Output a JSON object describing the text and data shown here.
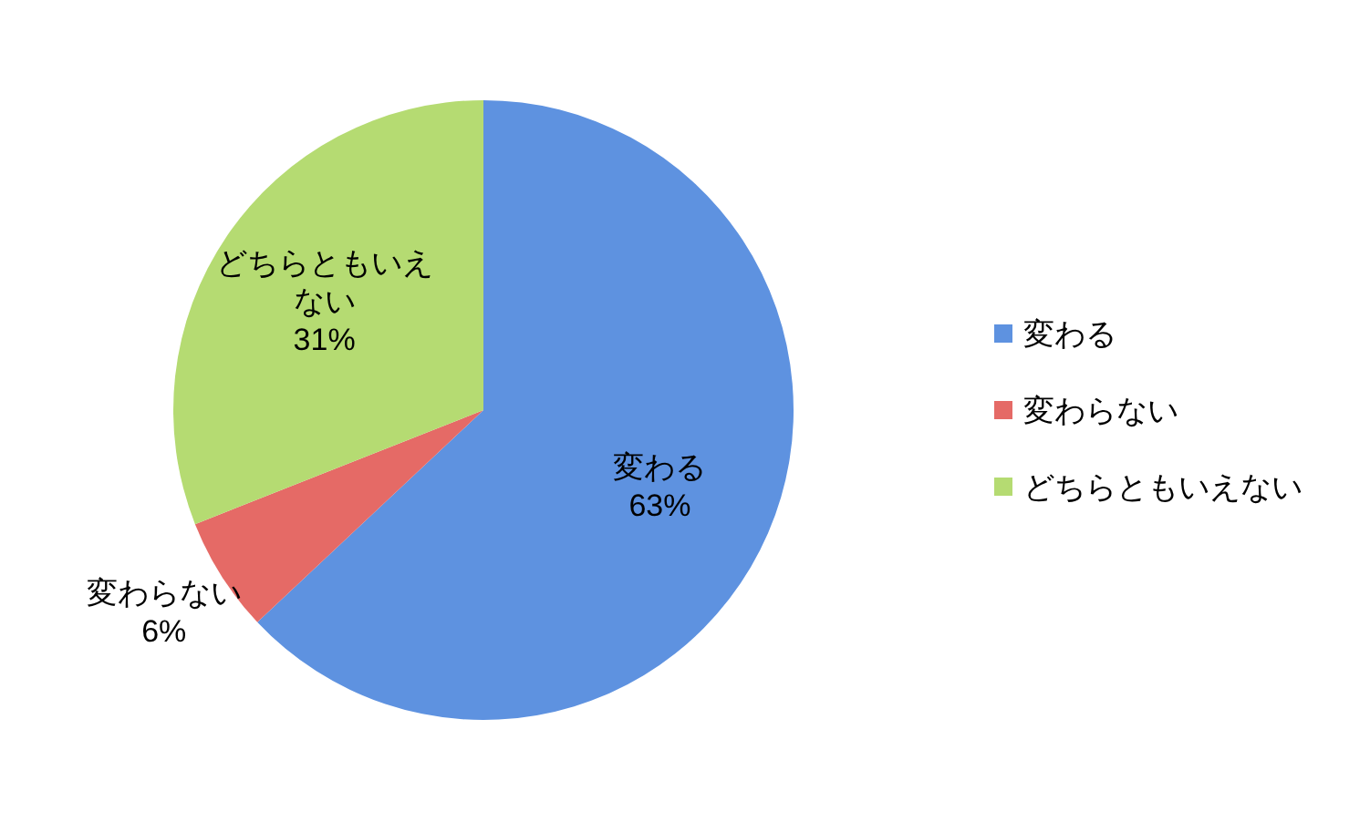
{
  "chart_data": {
    "type": "pie",
    "categories": [
      "変わる",
      "変わらない",
      "どちらともいえない"
    ],
    "values": [
      63,
      6,
      31
    ],
    "value_labels": [
      "63%",
      "6%",
      "31%"
    ],
    "colors": [
      "#5e92e0",
      "#e56a66",
      "#b5db72"
    ],
    "legend": "right"
  }
}
